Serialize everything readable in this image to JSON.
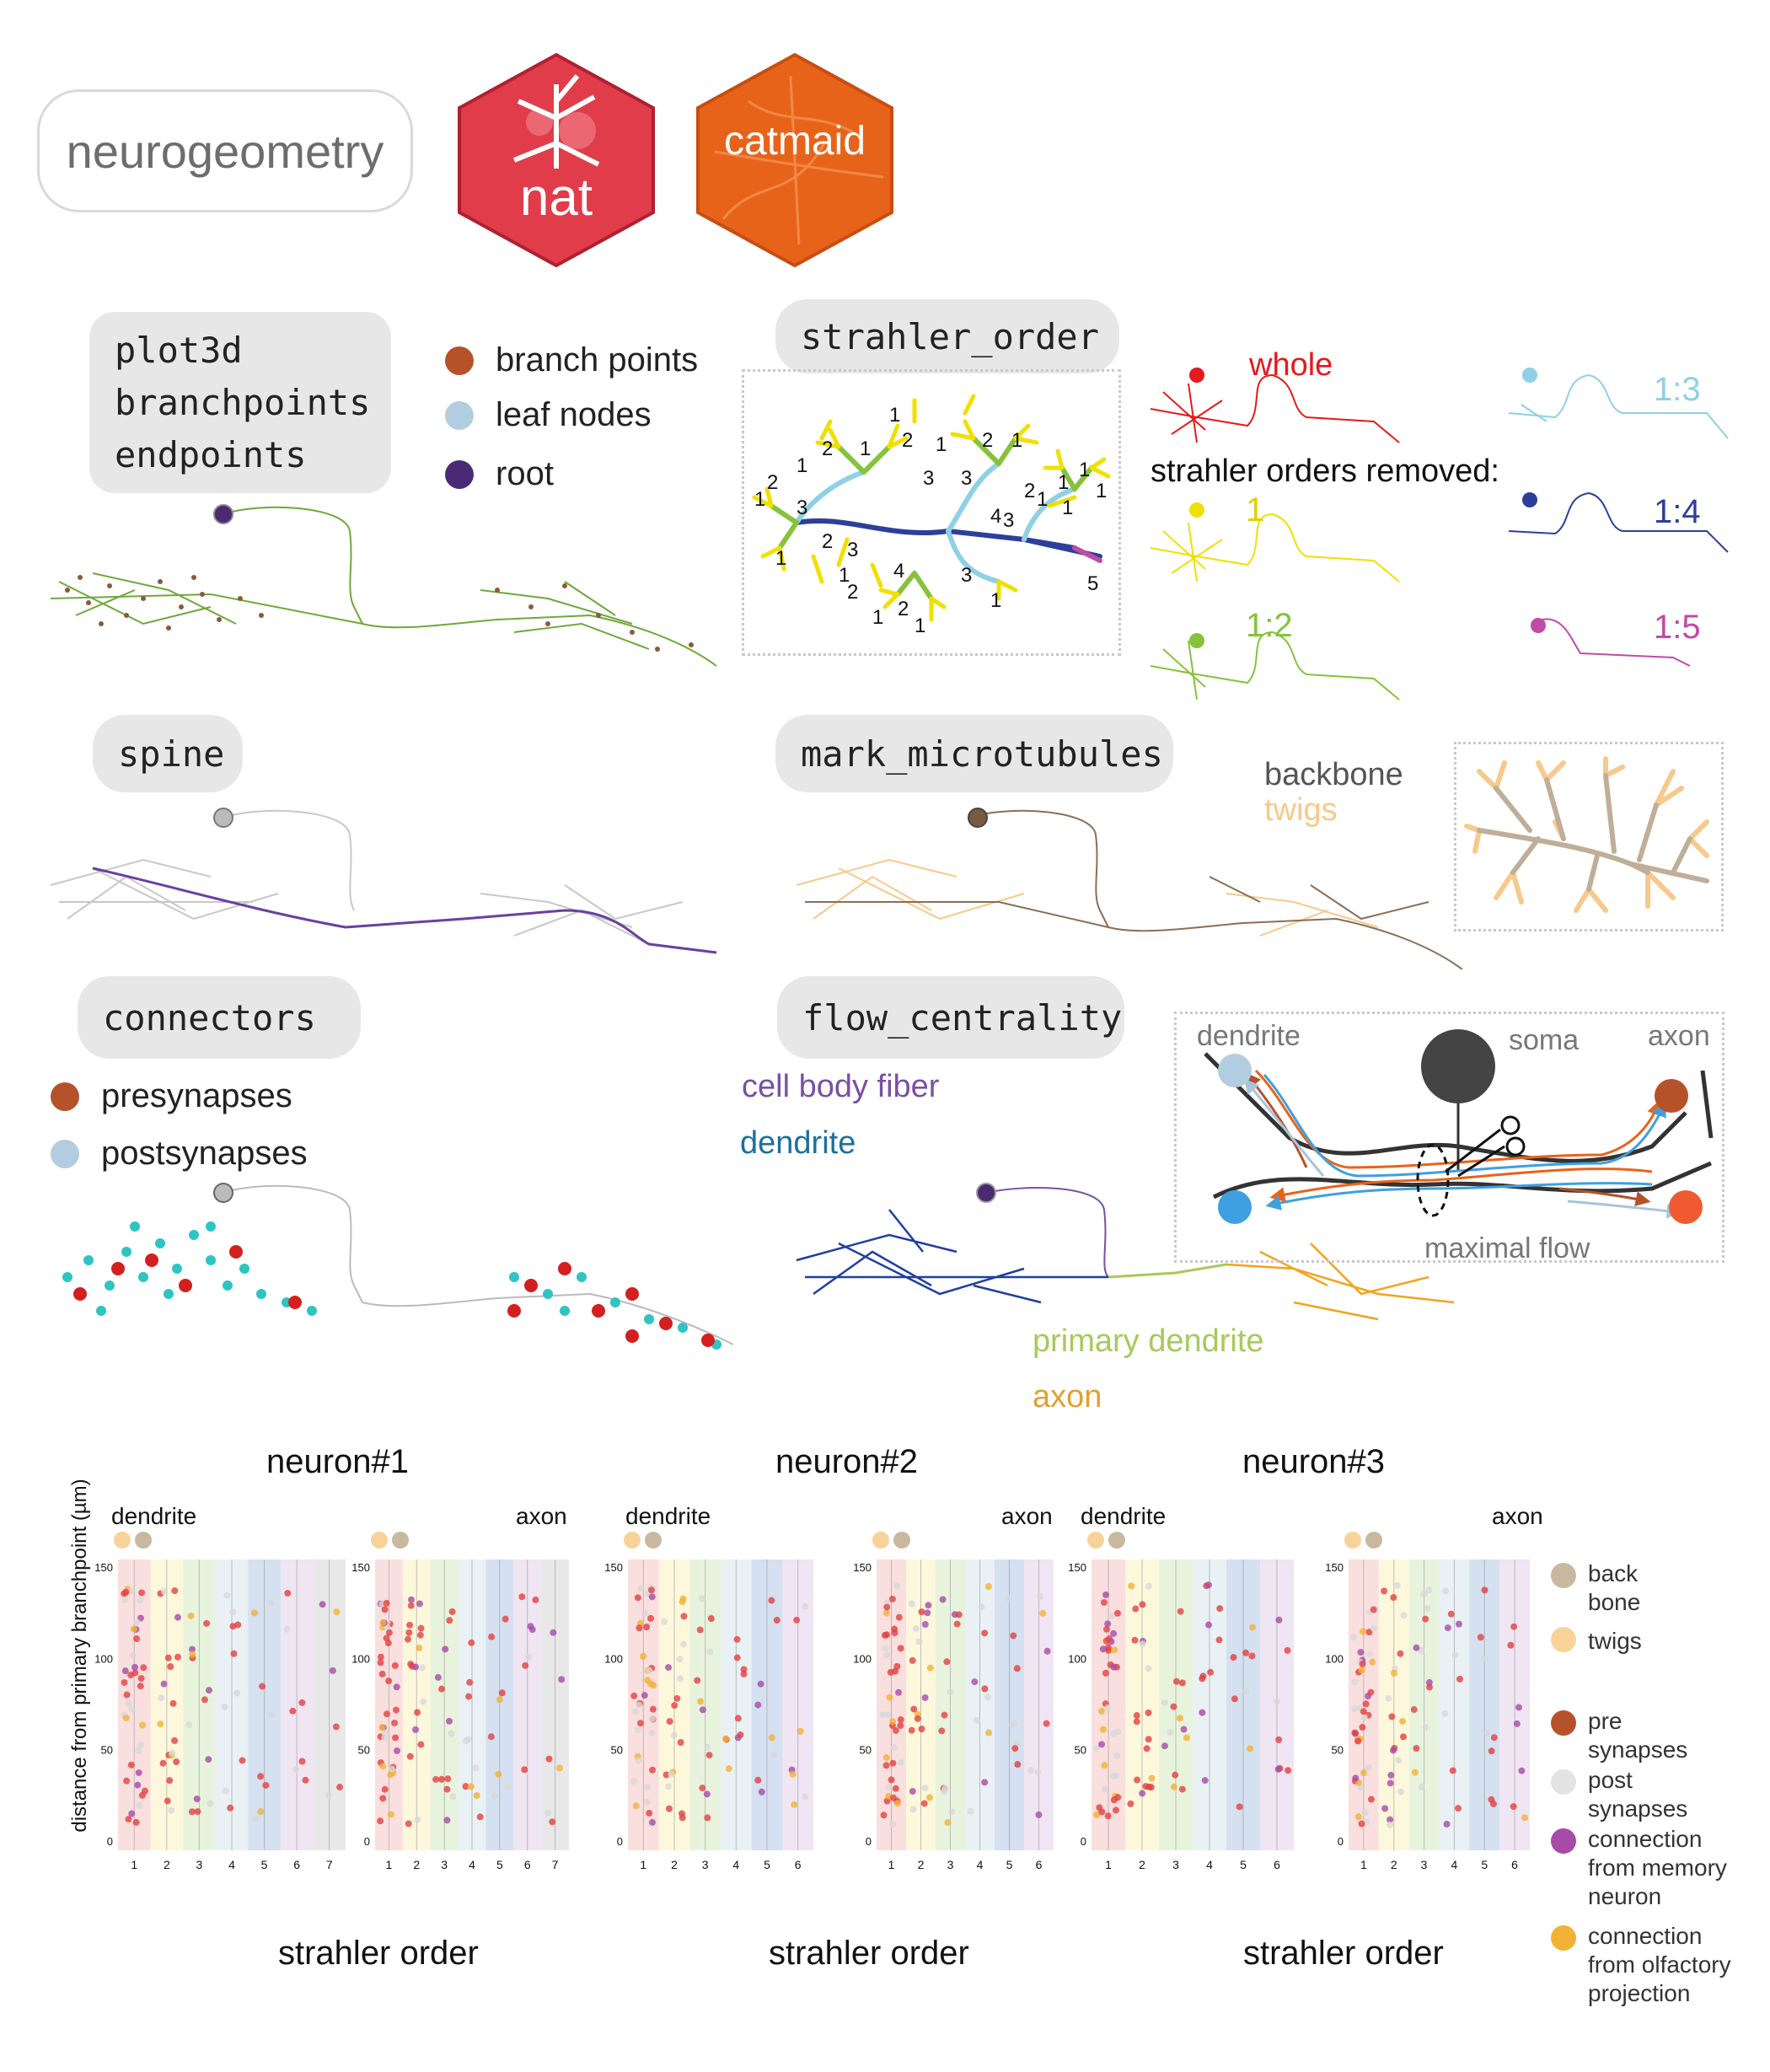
{
  "header": {
    "neurogeometry": "neurogeometry",
    "nat_logo": "nat",
    "catmaid_logo": "catmaid"
  },
  "colors": {
    "nat_red": "#e03c4a",
    "catmaid_orange": "#e8631a",
    "pill_gray": "#e7e7e7",
    "branch": "#b5522a",
    "leaf": "#b3cde0",
    "root": "#4b2a75"
  },
  "plot3d_panel": {
    "functions": [
      "plot3d",
      "branchpoints",
      "endpoints"
    ],
    "legend": [
      {
        "label": "branch points",
        "color": "#b5522a"
      },
      {
        "label": "leaf nodes",
        "color": "#b3cde0"
      },
      {
        "label": "root",
        "color": "#4b2a75"
      }
    ]
  },
  "strahler_panel": {
    "function": "strahler_order",
    "whole_label": "whole",
    "removed_label": "strahler orders removed:",
    "variants": [
      {
        "label": "1",
        "color": "#f0e000"
      },
      {
        "label": "1:2",
        "color": "#86c23a"
      },
      {
        "label": "1:3",
        "color": "#8fd0e6"
      },
      {
        "label": "1:4",
        "color": "#2c3f9a"
      },
      {
        "label": "1:5",
        "color": "#c04aa8"
      }
    ]
  },
  "spine_panel": {
    "function": "spine"
  },
  "microtubules_panel": {
    "function": "mark_microtubules",
    "backbone_label": "backbone",
    "twigs_label": "twigs"
  },
  "connectors_panel": {
    "function": "connectors",
    "legend": [
      {
        "label": "presynapses",
        "color": "#b5522a"
      },
      {
        "label": "postsynapses",
        "color": "#b3cde0"
      }
    ]
  },
  "flow_panel": {
    "function": "flow_centrality",
    "cell_body_fiber": "cell body fiber",
    "dendrite": "dendrite",
    "primary_dendrite": "primary dendrite",
    "axon": "axon",
    "diagram": {
      "dendrite": "dendrite",
      "soma": "soma",
      "axon": "axon",
      "maximal_flow": "maximal flow"
    }
  },
  "plots": {
    "y_axis_label": "distance from primary branchpoint (µm)",
    "x_axis_label": "strahler order",
    "neurons": [
      {
        "title": "neuron#1",
        "dendrite_label": "dendrite",
        "axon_label": "axon",
        "dendrite_x_ticks": [
          "1",
          "2",
          "3",
          "4",
          "5",
          "6",
          "7"
        ],
        "axon_x_ticks": [
          "1",
          "2",
          "3",
          "4",
          "5",
          "6",
          "7"
        ],
        "y_ticks": [
          "0",
          "50",
          "100",
          "150"
        ]
      },
      {
        "title": "neuron#2",
        "dendrite_label": "dendrite",
        "axon_label": "axon",
        "dendrite_x_ticks": [
          "1",
          "2",
          "3",
          "4",
          "5",
          "6"
        ],
        "axon_x_ticks": [
          "1",
          "2",
          "3",
          "4",
          "5",
          "6"
        ],
        "y_ticks": [
          "0",
          "50",
          "100",
          "150"
        ]
      },
      {
        "title": "neuron#3",
        "dendrite_label": "dendrite",
        "axon_label": "axon",
        "dendrite_x_ticks": [
          "1",
          "2",
          "3",
          "4",
          "5",
          "6"
        ],
        "axon_x_ticks": [
          "1",
          "2",
          "3",
          "4",
          "5",
          "6"
        ],
        "y_ticks": [
          "0",
          "50",
          "100",
          "150"
        ]
      }
    ],
    "legend": [
      {
        "label": "back\nbone",
        "color": "#c9b8a0"
      },
      {
        "label": "twigs",
        "color": "#f7d39a"
      },
      {
        "label": "pre\nsynapses",
        "color": "#b5522a"
      },
      {
        "label": "post\nsynapses",
        "color": "#e3e3e3"
      },
      {
        "label": "connection\nfrom memory\nneuron",
        "color": "#a84aa8"
      },
      {
        "label": "connection\nfrom olfactory\nprojection",
        "color": "#f2b233"
      }
    ],
    "band_colors": [
      "#f7c9c9",
      "#fbf3c4",
      "#d9ebc6",
      "#dbe8ef",
      "#b9cbe6",
      "#e6d3e9",
      "#d8d8d8"
    ]
  }
}
